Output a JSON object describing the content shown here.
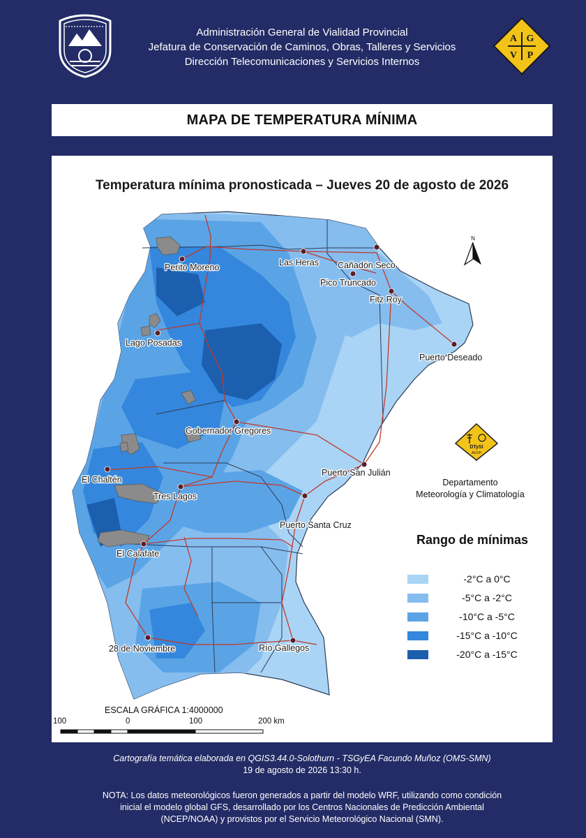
{
  "header": {
    "lines": [
      "Administración General de Vialidad Provincial",
      "Jefatura de Conservación de Caminos, Obras, Talleres y Servicios",
      "Dirección Telecomunicaciones y Servicios Internos"
    ],
    "agvp_letters": [
      "A",
      "G",
      "V",
      "P"
    ]
  },
  "banner_title": "MAPA DE TEMPERATURA MÍNIMA",
  "map": {
    "title": "Temperatura mínima pronosticada – Jueves 20 de agosto de 2026",
    "north_label": "N",
    "cities": [
      {
        "name": "Perito Moreno"
      },
      {
        "name": "Las Heras"
      },
      {
        "name": "Cañadón Seco"
      },
      {
        "name": "Pico Truncado"
      },
      {
        "name": "Fitz Roy"
      },
      {
        "name": "Lago Posadas"
      },
      {
        "name": "Puerto Deseado"
      },
      {
        "name": "Gobernador Gregores"
      },
      {
        "name": "El Chaltén"
      },
      {
        "name": "Tres Lagos"
      },
      {
        "name": "Puerto San Julián"
      },
      {
        "name": "Puerto Santa Cruz"
      },
      {
        "name": "El Calafate"
      },
      {
        "name": "28 de Noviembre"
      },
      {
        "name": "Río Gallegos"
      }
    ],
    "colors": {
      "c1": "#a9d4f5",
      "c2": "#86bdef",
      "c3": "#5aa4e6",
      "c4": "#3487dc",
      "c5": "#1c5fae",
      "lake": "#8b8b8b",
      "road": "#c0392b",
      "boundary": "#2b3b55"
    }
  },
  "department": {
    "line1": "Departamento",
    "line2": "Meteorología y Climatología",
    "logo_text": "DTySI",
    "logo_sub": "AGVP"
  },
  "legend": {
    "title": "Rango de mínimas",
    "items": [
      {
        "label": "-2°C a 0°C",
        "color": "#a9d4f5"
      },
      {
        "label": "-5°C a -2°C",
        "color": "#86bdef"
      },
      {
        "label": "-10°C a -5°C",
        "color": "#5aa4e6"
      },
      {
        "label": "-15°C a -10°C",
        "color": "#3487dc"
      },
      {
        "label": "-20°C a -15°C",
        "color": "#1c5fae"
      }
    ]
  },
  "scale": {
    "title": "ESCALA GRÁFICA 1:4000000",
    "labels": [
      "100",
      "0",
      "100",
      "200 km"
    ]
  },
  "footer": {
    "credit": "Cartografía temática elaborada en QGIS3.44.0-Solothurn - TSGyEA Facundo Muñoz (OMS-SMN)",
    "datetime": "19 de agosto de 2026 13:30 h.",
    "note_lines": [
      "NOTA: Los datos meteorológicos fueron generados a partir del modelo WRF, utilizando como condición",
      "inicial el modelo global GFS, desarrollado por los Centros Nacionales de Predicción Ambiental",
      "(NCEP/NOAA) y provistos por el Servicio Meteorológico Nacional (SMN)."
    ]
  }
}
